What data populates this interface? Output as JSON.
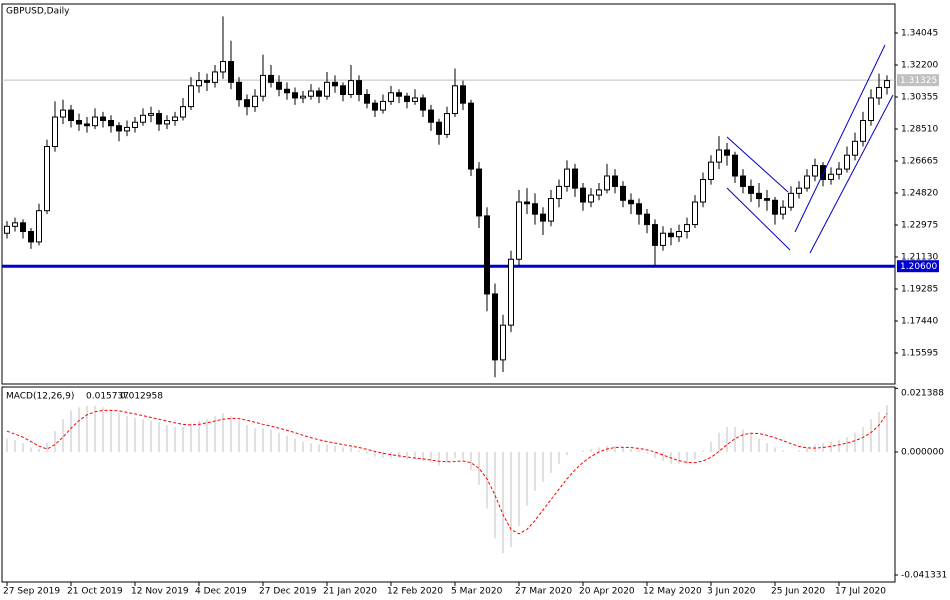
{
  "chart_data": [
    {
      "type": "candlestick",
      "title": "GBPUSD,Daily",
      "categories": [
        "27 Sep 2019",
        null,
        null,
        null,
        null,
        null,
        null,
        null,
        "21 Oct 2019",
        null,
        null,
        null,
        null,
        null,
        null,
        null,
        "12 Nov 2019",
        null,
        null,
        null,
        null,
        null,
        null,
        null,
        "4 Dec 2019",
        null,
        null,
        null,
        null,
        null,
        null,
        null,
        "27 Dec 2019",
        null,
        null,
        null,
        null,
        null,
        null,
        null,
        "21 Jan 2020",
        null,
        null,
        null,
        null,
        null,
        null,
        null,
        "12 Feb 2020",
        null,
        null,
        null,
        null,
        null,
        null,
        null,
        "5 Mar 2020",
        null,
        null,
        null,
        null,
        null,
        null,
        null,
        "27 Mar 2020",
        null,
        null,
        null,
        null,
        null,
        null,
        null,
        "20 Apr 2020",
        null,
        null,
        null,
        null,
        null,
        null,
        null,
        "12 May 2020",
        null,
        null,
        null,
        null,
        null,
        null,
        null,
        "3 Jun 2020",
        null,
        null,
        null,
        null,
        null,
        null,
        null,
        "25 Jun 2020",
        null,
        null,
        null,
        null,
        null,
        null,
        null,
        "17 Jul 2020",
        null,
        null,
        null,
        null,
        null,
        null
      ],
      "ohlc": [
        [
          1.225,
          1.232,
          1.222,
          1.229
        ],
        [
          1.229,
          1.234,
          1.226,
          1.231
        ],
        [
          1.231,
          1.233,
          1.222,
          1.226
        ],
        [
          1.226,
          1.228,
          1.216,
          1.22
        ],
        [
          1.22,
          1.242,
          1.218,
          1.238
        ],
        [
          1.238,
          1.279,
          1.236,
          1.275
        ],
        [
          1.275,
          1.301,
          1.272,
          1.292
        ],
        [
          1.292,
          1.302,
          1.288,
          1.296
        ],
        [
          1.296,
          1.299,
          1.286,
          1.29
        ],
        [
          1.29,
          1.294,
          1.284,
          1.288
        ],
        [
          1.288,
          1.292,
          1.283,
          1.287
        ],
        [
          1.287,
          1.297,
          1.285,
          1.292
        ],
        [
          1.292,
          1.295,
          1.286,
          1.29
        ],
        [
          1.29,
          1.293,
          1.283,
          1.287
        ],
        [
          1.287,
          1.289,
          1.278,
          1.284
        ],
        [
          1.284,
          1.29,
          1.281,
          1.286
        ],
        [
          1.286,
          1.292,
          1.283,
          1.289
        ],
        [
          1.289,
          1.297,
          1.287,
          1.293
        ],
        [
          1.293,
          1.298,
          1.289,
          1.294
        ],
        [
          1.294,
          1.296,
          1.284,
          1.288
        ],
        [
          1.288,
          1.293,
          1.285,
          1.29
        ],
        [
          1.29,
          1.295,
          1.287,
          1.292
        ],
        [
          1.292,
          1.303,
          1.29,
          1.298
        ],
        [
          1.298,
          1.315,
          1.296,
          1.31
        ],
        [
          1.31,
          1.318,
          1.306,
          1.313
        ],
        [
          1.313,
          1.317,
          1.307,
          1.312
        ],
        [
          1.312,
          1.322,
          1.309,
          1.318
        ],
        [
          1.318,
          1.35,
          1.314,
          1.324
        ],
        [
          1.324,
          1.336,
          1.308,
          1.312
        ],
        [
          1.312,
          1.315,
          1.298,
          1.302
        ],
        [
          1.302,
          1.305,
          1.293,
          1.298
        ],
        [
          1.298,
          1.308,
          1.295,
          1.304
        ],
        [
          1.304,
          1.328,
          1.301,
          1.316
        ],
        [
          1.316,
          1.322,
          1.309,
          1.312
        ],
        [
          1.312,
          1.316,
          1.304,
          1.308
        ],
        [
          1.308,
          1.312,
          1.302,
          1.306
        ],
        [
          1.306,
          1.309,
          1.299,
          1.303
        ],
        [
          1.303,
          1.307,
          1.3,
          1.304
        ],
        [
          1.304,
          1.311,
          1.302,
          1.307
        ],
        [
          1.307,
          1.309,
          1.3,
          1.304
        ],
        [
          1.304,
          1.318,
          1.302,
          1.312
        ],
        [
          1.312,
          1.316,
          1.306,
          1.31
        ],
        [
          1.31,
          1.312,
          1.301,
          1.305
        ],
        [
          1.305,
          1.322,
          1.303,
          1.313
        ],
        [
          1.313,
          1.316,
          1.301,
          1.305
        ],
        [
          1.305,
          1.308,
          1.297,
          1.3
        ],
        [
          1.3,
          1.302,
          1.292,
          1.296
        ],
        [
          1.296,
          1.305,
          1.294,
          1.301
        ],
        [
          1.301,
          1.31,
          1.299,
          1.306
        ],
        [
          1.306,
          1.308,
          1.3,
          1.304
        ],
        [
          1.304,
          1.306,
          1.297,
          1.301
        ],
        [
          1.301,
          1.308,
          1.299,
          1.303
        ],
        [
          1.303,
          1.305,
          1.292,
          1.296
        ],
        [
          1.296,
          1.299,
          1.284,
          1.289
        ],
        [
          1.289,
          1.291,
          1.276,
          1.282
        ],
        [
          1.282,
          1.298,
          1.28,
          1.294
        ],
        [
          1.294,
          1.32,
          1.292,
          1.31
        ],
        [
          1.31,
          1.313,
          1.296,
          1.3
        ],
        [
          1.3,
          1.302,
          1.258,
          1.262
        ],
        [
          1.262,
          1.266,
          1.228,
          1.235
        ],
        [
          1.235,
          1.24,
          1.18,
          1.19
        ],
        [
          1.19,
          1.196,
          1.142,
          1.152
        ],
        [
          1.152,
          1.178,
          1.145,
          1.172
        ],
        [
          1.172,
          1.215,
          1.168,
          1.21
        ],
        [
          1.21,
          1.25,
          1.206,
          1.243
        ],
        [
          1.243,
          1.251,
          1.236,
          1.242
        ],
        [
          1.242,
          1.248,
          1.23,
          1.236
        ],
        [
          1.236,
          1.24,
          1.224,
          1.232
        ],
        [
          1.232,
          1.25,
          1.229,
          1.245
        ],
        [
          1.245,
          1.256,
          1.24,
          1.252
        ],
        [
          1.252,
          1.267,
          1.249,
          1.262
        ],
        [
          1.262,
          1.265,
          1.246,
          1.251
        ],
        [
          1.251,
          1.254,
          1.238,
          1.243
        ],
        [
          1.243,
          1.251,
          1.24,
          1.247
        ],
        [
          1.247,
          1.254,
          1.244,
          1.25
        ],
        [
          1.25,
          1.265,
          1.248,
          1.258
        ],
        [
          1.258,
          1.262,
          1.248,
          1.252
        ],
        [
          1.252,
          1.255,
          1.24,
          1.244
        ],
        [
          1.244,
          1.248,
          1.236,
          1.242
        ],
        [
          1.242,
          1.245,
          1.23,
          1.236
        ],
        [
          1.236,
          1.239,
          1.225,
          1.23
        ],
        [
          1.23,
          1.233,
          1.206,
          1.218
        ],
        [
          1.218,
          1.229,
          1.215,
          1.225
        ],
        [
          1.225,
          1.228,
          1.218,
          1.223
        ],
        [
          1.223,
          1.23,
          1.22,
          1.226
        ],
        [
          1.226,
          1.234,
          1.222,
          1.23
        ],
        [
          1.23,
          1.247,
          1.228,
          1.243
        ],
        [
          1.243,
          1.26,
          1.24,
          1.256
        ],
        [
          1.256,
          1.27,
          1.253,
          1.266
        ],
        [
          1.266,
          1.281,
          1.262,
          1.273
        ],
        [
          1.273,
          1.277,
          1.264,
          1.27
        ],
        [
          1.27,
          1.272,
          1.254,
          1.258
        ],
        [
          1.258,
          1.262,
          1.248,
          1.252
        ],
        [
          1.252,
          1.256,
          1.243,
          1.248
        ],
        [
          1.248,
          1.254,
          1.24,
          1.245
        ],
        [
          1.245,
          1.25,
          1.238,
          1.244
        ],
        [
          1.244,
          1.246,
          1.23,
          1.236
        ],
        [
          1.236,
          1.244,
          1.233,
          1.24
        ],
        [
          1.24,
          1.252,
          1.238,
          1.248
        ],
        [
          1.248,
          1.255,
          1.245,
          1.251
        ],
        [
          1.251,
          1.262,
          1.249,
          1.258
        ],
        [
          1.258,
          1.268,
          1.255,
          1.264
        ],
        [
          1.264,
          1.266,
          1.252,
          1.256
        ],
        [
          1.256,
          1.263,
          1.253,
          1.259
        ],
        [
          1.259,
          1.266,
          1.256,
          1.262
        ],
        [
          1.262,
          1.275,
          1.26,
          1.27
        ],
        [
          1.27,
          1.283,
          1.267,
          1.278
        ],
        [
          1.278,
          1.295,
          1.275,
          1.29
        ],
        [
          1.29,
          1.308,
          1.287,
          1.303
        ],
        [
          1.303,
          1.317,
          1.299,
          1.309
        ],
        [
          1.309,
          1.316,
          1.305,
          1.313
        ]
      ],
      "up_color": "#ffffff",
      "down_color": "#000000",
      "wick_color": "#000000",
      "ylim": [
        1.13808,
        1.35717
      ],
      "yticks": [
        1.34045,
        {
          "value": 1.322,
          "label": "1.32200"
        },
        1.30355,
        {
          "value": 1.2851,
          "label": "1.28510"
        },
        1.26665,
        {
          "value": 1.2482,
          "label": "1.24820"
        },
        1.22975,
        {
          "value": 1.2113,
          "label": "1.21130"
        },
        1.19285,
        {
          "value": 1.1744,
          "label": "1.17440"
        },
        1.15595
      ],
      "price_lines": [
        {
          "value": 1.31325,
          "color": "#c0c0c0"
        },
        {
          "value": 1.206,
          "label": "1.20600",
          "color": "#0000cc"
        }
      ]
    },
    {
      "type": "macd",
      "title": "MACD(12,26,9)",
      "series": [
        {
          "color": "#c0c0c0",
          "values": [
            0.0045,
            0.004,
            0.003,
            0.0015,
            0.001,
            0.003,
            0.007,
            0.011,
            0.014,
            0.015,
            0.0155,
            0.0155,
            0.015,
            0.014,
            0.013,
            0.012,
            0.0115,
            0.011,
            0.0105,
            0.01,
            0.009,
            0.0085,
            0.0085,
            0.0095,
            0.0105,
            0.011,
            0.012,
            0.013,
            0.012,
            0.0105,
            0.009,
            0.008,
            0.008,
            0.0075,
            0.0065,
            0.0055,
            0.0045,
            0.0035,
            0.003,
            0.0025,
            0.0025,
            0.002,
            0.0015,
            0.0015,
            0.0005,
            -0.0005,
            -0.0015,
            -0.002,
            -0.002,
            -0.002,
            -0.0025,
            -0.0025,
            -0.003,
            -0.0035,
            -0.0045,
            -0.0035,
            -0.002,
            -0.0025,
            -0.006,
            -0.011,
            -0.019,
            -0.029,
            -0.034,
            -0.032,
            -0.025,
            -0.018,
            -0.013,
            -0.01,
            -0.007,
            -0.004,
            -0.001,
            0,
            0.0005,
            0.001,
            0.0015,
            0.002,
            0.002,
            0.0015,
            0.001,
            0.0005,
            -0.0005,
            -0.002,
            -0.003,
            -0.004,
            -0.004,
            -0.004,
            -0.0025,
            0.0005,
            0.0035,
            0.0065,
            0.0085,
            0.0085,
            0.0075,
            0.006,
            0.0045,
            0.003,
            0.0015,
            0.0005,
            0,
            0.0005,
            0.0015,
            0.0025,
            0.003,
            0.0035,
            0.004,
            0.005,
            0.0065,
            0.0085,
            0.011,
            0.0135,
            0.015737
          ]
        },
        {
          "color": "#ff0000",
          "values": [
            0.007,
            0.006,
            0.005,
            0.0035,
            0.002,
            0.001,
            0.0025,
            0.005,
            0.008,
            0.0105,
            0.0125,
            0.0135,
            0.014,
            0.014,
            0.0138,
            0.0133,
            0.0128,
            0.0122,
            0.0116,
            0.011,
            0.0104,
            0.0098,
            0.0093,
            0.0091,
            0.0093,
            0.0098,
            0.0104,
            0.011,
            0.0113,
            0.0112,
            0.0107,
            0.01,
            0.0093,
            0.0087,
            0.008,
            0.0073,
            0.0065,
            0.0056,
            0.0048,
            0.0041,
            0.0035,
            0.003,
            0.0025,
            0.002,
            0.0015,
            0.0009,
            0.0002,
            -0.0004,
            -0.0009,
            -0.0013,
            -0.0017,
            -0.002,
            -0.0023,
            -0.0027,
            -0.0031,
            -0.0033,
            -0.0032,
            -0.003,
            -0.0036,
            -0.0055,
            -0.009,
            -0.0145,
            -0.021,
            -0.026,
            -0.0275,
            -0.026,
            -0.023,
            -0.0195,
            -0.016,
            -0.0125,
            -0.009,
            -0.006,
            -0.0035,
            -0.0015,
            0,
            0.001,
            0.0015,
            0.0016,
            0.0015,
            0.0012,
            0.0007,
            0,
            -0.001,
            -0.002,
            -0.0029,
            -0.0035,
            -0.0036,
            -0.003,
            -0.0018,
            0.0002,
            0.0025,
            0.0045,
            0.0058,
            0.0063,
            0.0062,
            0.0056,
            0.0048,
            0.0038,
            0.0028,
            0.0019,
            0.0014,
            0.0013,
            0.0015,
            0.0019,
            0.0024,
            0.003,
            0.0038,
            0.0049,
            0.0065,
            0.009,
            0.012958
          ]
        }
      ],
      "ylim": [
        -0.04368,
        0.02184
      ],
      "yticks": [
        0.021388,
        {
          "value": 0,
          "label": "0.000000"
        },
        -0.041331
      ]
    }
  ]
}
